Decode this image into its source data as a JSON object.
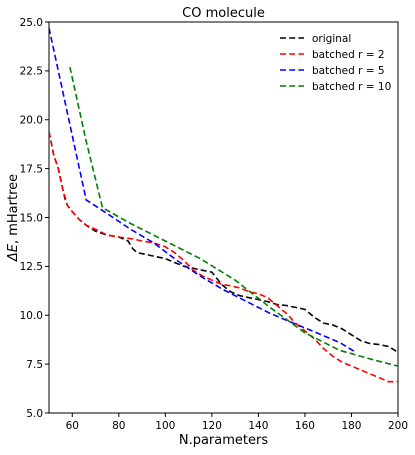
{
  "chart_data": {
    "type": "line",
    "title": "CO molecule",
    "xlabel": "N.parameters",
    "ylabel": "ΔE, mHartree",
    "xlim": [
      50,
      200
    ],
    "ylim": [
      5.0,
      25.0
    ],
    "xticks": [
      60,
      80,
      100,
      120,
      140,
      160,
      180,
      200
    ],
    "yticks": [
      5.0,
      7.5,
      10.0,
      12.5,
      15.0,
      17.5,
      20.0,
      22.5,
      25.0
    ],
    "xtick_labels": [
      "60",
      "80",
      "100",
      "120",
      "140",
      "160",
      "180",
      "200"
    ],
    "ytick_labels": [
      "5.0",
      "7.5",
      "10.0",
      "12.5",
      "15.0",
      "17.5",
      "20.0",
      "22.5",
      "25.0"
    ],
    "grid": false,
    "legend_position": "top-right",
    "series": [
      {
        "name": "original",
        "color": "#000000",
        "dash": "dashed",
        "x": [
          50,
          52,
          54,
          56,
          57,
          58,
          60,
          63,
          66,
          70,
          75,
          80,
          84,
          86,
          88,
          92,
          96,
          100,
          104,
          108,
          112,
          116,
          120,
          124,
          128,
          132,
          136,
          140,
          144,
          148,
          152,
          156,
          160,
          164,
          168,
          172,
          176,
          180,
          184,
          188,
          192,
          196,
          200
        ],
        "y": [
          19.4,
          18.2,
          17.5,
          16.4,
          15.9,
          15.6,
          15.3,
          14.9,
          14.6,
          14.3,
          14.1,
          14.0,
          13.8,
          13.4,
          13.2,
          13.1,
          13.0,
          12.9,
          12.7,
          12.5,
          12.4,
          12.3,
          12.2,
          11.6,
          11.2,
          11.0,
          10.9,
          10.8,
          10.7,
          10.55,
          10.5,
          10.4,
          10.3,
          9.9,
          9.6,
          9.5,
          9.3,
          9.0,
          8.7,
          8.55,
          8.5,
          8.4,
          8.1
        ]
      },
      {
        "name": "batched r = 2",
        "color": "#ff0000",
        "dash": "dashed",
        "x": [
          50,
          52,
          54,
          56,
          58,
          60,
          63,
          66,
          70,
          75,
          80,
          86,
          90,
          95,
          100,
          104,
          108,
          112,
          116,
          120,
          124,
          128,
          132,
          136,
          140,
          144,
          148,
          152,
          156,
          160,
          164,
          168,
          172,
          176,
          180,
          184,
          188,
          192,
          196,
          200
        ],
        "y": [
          19.4,
          18.2,
          17.5,
          16.4,
          15.6,
          15.3,
          14.9,
          14.6,
          14.4,
          14.1,
          14.0,
          13.9,
          13.8,
          13.7,
          13.5,
          13.2,
          12.8,
          12.3,
          12.0,
          11.8,
          11.6,
          11.5,
          11.4,
          11.2,
          11.1,
          10.9,
          10.5,
          10.1,
          9.6,
          9.2,
          8.8,
          8.3,
          7.9,
          7.6,
          7.4,
          7.2,
          7.0,
          6.8,
          6.6,
          6.6
        ]
      },
      {
        "name": "batched r = 5",
        "color": "#0000ff",
        "dash": "dashed",
        "x": [
          50,
          58,
          66,
          75,
          85,
          95,
          105,
          115,
          125,
          135,
          145,
          155,
          165,
          175,
          182
        ],
        "y": [
          24.7,
          20.3,
          15.9,
          15.2,
          14.4,
          13.7,
          12.8,
          12.0,
          11.3,
          10.7,
          10.1,
          9.6,
          9.1,
          8.6,
          8.1
        ]
      },
      {
        "name": "batched r = 10",
        "color": "#008000",
        "dash": "dashed",
        "x": [
          59,
          66,
          73,
          85,
          100,
          115,
          130,
          145,
          160,
          175,
          190,
          200
        ],
        "y": [
          22.7,
          18.9,
          15.5,
          14.7,
          13.8,
          12.9,
          11.8,
          10.4,
          9.1,
          8.2,
          7.7,
          7.4
        ]
      }
    ]
  }
}
